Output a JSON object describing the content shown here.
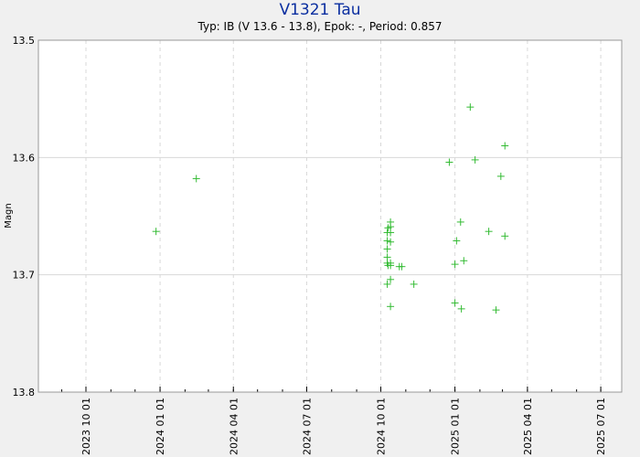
{
  "chart_data": {
    "type": "scatter",
    "title": "V1321 Tau",
    "subtitle": "Typ: IB (V 13.6 - 13.8), Epok: -, Period: 0.857",
    "ylabel": "Magn",
    "xlabel": "",
    "y_inverted": true,
    "ylim": [
      13.5,
      13.8
    ],
    "y_ticks": [
      "13.5",
      "13.6",
      "13.7",
      "13.8"
    ],
    "xlim": [
      "2023-08-03",
      "2025-07-27"
    ],
    "x_ticks": [
      "2023 10 01",
      "2024 01 01",
      "2024 04 01",
      "2024 07 01",
      "2024 10 01",
      "2025 01 01",
      "2025 04 01",
      "2025 07 01"
    ],
    "grid": true,
    "marker": "plus",
    "colors": {
      "series": "#33bb33",
      "grid": "#d8d8d8",
      "axis_text": "#000000"
    },
    "series": [
      {
        "points": [
          {
            "x": "2023-12-27",
            "y": 13.663
          },
          {
            "x": "2024-02-15",
            "y": 13.618
          },
          {
            "x": "2024-10-09",
            "y": 13.664
          },
          {
            "x": "2024-10-09",
            "y": 13.671
          },
          {
            "x": "2024-10-09",
            "y": 13.678
          },
          {
            "x": "2024-10-09",
            "y": 13.685
          },
          {
            "x": "2024-10-09",
            "y": 13.69
          },
          {
            "x": "2024-10-09",
            "y": 13.708
          },
          {
            "x": "2024-10-10",
            "y": 13.66
          },
          {
            "x": "2024-10-10",
            "y": 13.692
          },
          {
            "x": "2024-10-13",
            "y": 13.655
          },
          {
            "x": "2024-10-13",
            "y": 13.659
          },
          {
            "x": "2024-10-13",
            "y": 13.664
          },
          {
            "x": "2024-10-13",
            "y": 13.672
          },
          {
            "x": "2024-10-13",
            "y": 13.69
          },
          {
            "x": "2024-10-13",
            "y": 13.692
          },
          {
            "x": "2024-10-13",
            "y": 13.704
          },
          {
            "x": "2024-10-13",
            "y": 13.727
          },
          {
            "x": "2024-10-24",
            "y": 13.693
          },
          {
            "x": "2024-10-27",
            "y": 13.693
          },
          {
            "x": "2024-11-11",
            "y": 13.708
          },
          {
            "x": "2024-12-25",
            "y": 13.604
          },
          {
            "x": "2025-01-01",
            "y": 13.691
          },
          {
            "x": "2025-01-01",
            "y": 13.724
          },
          {
            "x": "2025-01-03",
            "y": 13.671
          },
          {
            "x": "2025-01-08",
            "y": 13.655
          },
          {
            "x": "2025-01-09",
            "y": 13.729
          },
          {
            "x": "2025-01-12",
            "y": 13.688
          },
          {
            "x": "2025-01-20",
            "y": 13.557
          },
          {
            "x": "2025-01-26",
            "y": 13.602
          },
          {
            "x": "2025-02-12",
            "y": 13.663
          },
          {
            "x": "2025-02-21",
            "y": 13.73
          },
          {
            "x": "2025-02-27",
            "y": 13.616
          },
          {
            "x": "2025-03-04",
            "y": 13.59
          },
          {
            "x": "2025-03-04",
            "y": 13.667
          }
        ]
      }
    ]
  }
}
